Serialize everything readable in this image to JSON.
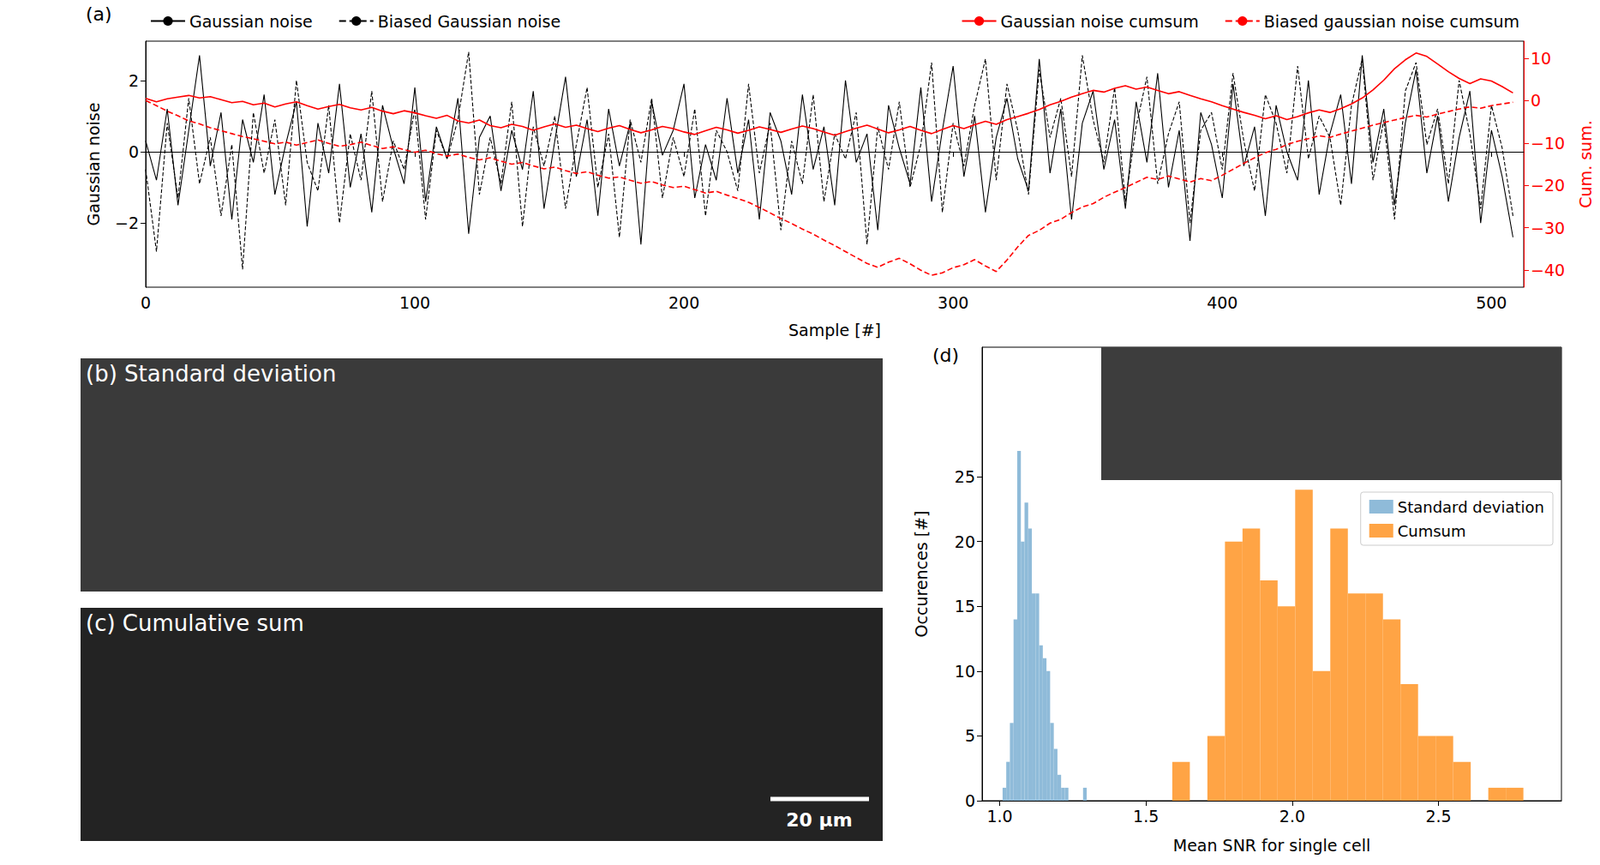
{
  "chart_data": [
    {
      "type": "line",
      "title": "(a)",
      "xlabel": "Sample [#]",
      "ylabel": "Gaussian noise",
      "y2label": "Cum. sum.",
      "xlim": [
        0,
        512
      ],
      "xticks": [
        0,
        100,
        200,
        300,
        400,
        500
      ],
      "ylim": [
        -3.8,
        3.1
      ],
      "yticks": [
        {
          "value": -2,
          "label": "−2"
        },
        0,
        2
      ],
      "y2lim": [
        -44,
        14
      ],
      "y2ticks": [
        {
          "value": -40,
          "label": "−40"
        },
        {
          "value": -30,
          "label": "−30"
        },
        {
          "value": -20,
          "label": "−20"
        },
        {
          "value": -10,
          "label": "−10"
        },
        0,
        10
      ],
      "legend": "top",
      "x": [
        0,
        4,
        8,
        12,
        16,
        20,
        24,
        28,
        32,
        36,
        40,
        44,
        48,
        52,
        56,
        60,
        64,
        68,
        72,
        76,
        80,
        84,
        88,
        92,
        96,
        100,
        104,
        108,
        112,
        116,
        120,
        124,
        128,
        132,
        136,
        140,
        144,
        148,
        152,
        156,
        160,
        164,
        168,
        172,
        176,
        180,
        184,
        188,
        192,
        196,
        200,
        204,
        208,
        212,
        216,
        220,
        224,
        228,
        232,
        236,
        240,
        244,
        248,
        252,
        256,
        260,
        264,
        268,
        272,
        276,
        280,
        284,
        288,
        292,
        296,
        300,
        304,
        308,
        312,
        316,
        320,
        324,
        328,
        332,
        336,
        340,
        344,
        348,
        352,
        356,
        360,
        364,
        368,
        372,
        376,
        380,
        384,
        388,
        392,
        396,
        400,
        404,
        408,
        412,
        416,
        420,
        424,
        428,
        432,
        436,
        440,
        444,
        448,
        452,
        456,
        460,
        464,
        468,
        472,
        476,
        480,
        484,
        488,
        492,
        496,
        500,
        504,
        508
      ],
      "series": [
        {
          "name": "Gaussian noise",
          "color": "#000000",
          "line_style": "solid",
          "values": [
            0.3,
            -0.8,
            1.2,
            -1.5,
            0.6,
            2.7,
            -0.4,
            1.1,
            -1.9,
            0.9,
            -0.3,
            1.6,
            -1.2,
            0.2,
            1.4,
            -2.1,
            0.8,
            -0.6,
            1.9,
            -1.0,
            0.5,
            -1.7,
            1.3,
            0.1,
            -0.9,
            1.8,
            -1.4,
            0.7,
            -0.2,
            1.5,
            -2.3,
            0.4,
            1.0,
            -1.1,
            0.6,
            -0.5,
            1.7,
            -1.6,
            0.3,
            2.1,
            -0.7,
            0.9,
            -1.8,
            1.2,
            -0.4,
            0.8,
            -2.6,
            1.4,
            -0.1,
            0.6,
            1.9,
            -1.3,
            0.2,
            -0.8,
            1.5,
            -0.6,
            0.9,
            -1.9,
            1.1,
            0.3,
            -1.2,
            1.6,
            -0.5,
            0.7,
            -1.5,
            2.0,
            -0.3,
            0.5,
            -2.2,
            1.3,
            0.1,
            -0.9,
            1.8,
            -1.4,
            0.6,
            2.4,
            -0.7,
            1.0,
            -1.7,
            0.4,
            1.5,
            -0.2,
            -1.1,
            2.6,
            -0.6,
            1.2,
            -1.9,
            0.8,
            1.7,
            -0.5,
            0.9,
            -1.6,
            1.4,
            -0.3,
            2.2,
            -1.0,
            0.6,
            -2.5,
            1.1,
            0.2,
            -1.3,
            1.9,
            -0.4,
            0.7,
            -1.8,
            1.3,
            0.0,
            -0.8,
            2.0,
            -1.2,
            0.5,
            1.6,
            -0.9,
            2.7,
            -0.3,
            1.2,
            -1.5,
            0.8,
            2.3,
            -0.6,
            1.0,
            -1.4,
            0.4,
            1.7,
            -2.0,
            0.6,
            -0.7,
            -2.4
          ]
        },
        {
          "name": "Biased Gaussian noise",
          "color": "#000000",
          "line_style": "dashed",
          "values": [
            -0.5,
            -2.8,
            0.8,
            -1.3,
            1.5,
            -0.9,
            0.4,
            -1.8,
            0.2,
            -3.3,
            1.1,
            -0.6,
            0.9,
            -1.5,
            2.0,
            -0.3,
            -1.1,
            1.3,
            -2.0,
            0.5,
            -0.8,
            1.7,
            -1.4,
            0.3,
            -0.5,
            1.2,
            -1.9,
            0.6,
            -0.2,
            0.9,
            2.8,
            -1.2,
            0.4,
            -0.9,
            1.4,
            -2.1,
            0.7,
            -0.4,
            1.0,
            -1.6,
            0.2,
            1.8,
            -1.0,
            0.5,
            -2.4,
            0.9,
            -0.3,
            1.5,
            -1.3,
            0.4,
            -0.7,
            1.2,
            -1.8,
            0.6,
            0.0,
            -1.1,
            1.9,
            -0.6,
            0.8,
            -2.2,
            0.3,
            -0.9,
            1.6,
            -1.4,
            0.5,
            -0.2,
            1.1,
            -2.6,
            0.7,
            -0.5,
            1.4,
            -1.0,
            0.2,
            2.5,
            -1.7,
            0.8,
            -0.4,
            1.3,
            2.6,
            -0.8,
            1.9,
            0.6,
            -1.2,
            2.3,
            0.4,
            1.5,
            -0.7,
            2.7,
            0.9,
            -0.3,
            1.8,
            -1.4,
            0.7,
            2.1,
            -0.9,
            0.5,
            1.4,
            -2.0,
            0.6,
            1.1,
            -0.5,
            2.2,
            0.3,
            -1.1,
            1.6,
            0.8,
            -0.6,
            2.4,
            -0.2,
            1.0,
            0.4,
            -1.5,
            1.3,
            2.6,
            -0.8,
            0.9,
            -1.9,
            1.7,
            2.5,
            0.2,
            1.2,
            -0.9,
            2.0,
            0.5,
            -1.6,
            1.3,
            0.1,
            -1.8
          ]
        },
        {
          "name": "Gaussian noise cumsum",
          "color": "#ff0000",
          "line_style": "solid",
          "axis": "y2",
          "values": [
            0.5,
            -0.3,
            0.4,
            0.8,
            1.2,
            0.6,
            0.9,
            0.2,
            -0.5,
            -0.2,
            -1.0,
            -0.6,
            -1.5,
            -0.8,
            -0.3,
            -1.2,
            -2.0,
            -1.4,
            -0.9,
            -1.7,
            -2.2,
            -1.6,
            -2.5,
            -3.1,
            -2.4,
            -2.9,
            -3.6,
            -4.2,
            -3.5,
            -4.8,
            -5.3,
            -4.6,
            -5.9,
            -6.4,
            -5.6,
            -6.1,
            -7.0,
            -6.2,
            -5.5,
            -6.3,
            -5.8,
            -6.6,
            -7.3,
            -6.5,
            -5.9,
            -6.8,
            -7.6,
            -6.9,
            -6.1,
            -6.6,
            -7.4,
            -8.0,
            -7.1,
            -6.3,
            -6.9,
            -7.7,
            -7.0,
            -6.2,
            -6.8,
            -7.5,
            -6.7,
            -6.0,
            -6.6,
            -7.4,
            -8.2,
            -7.3,
            -6.5,
            -5.8,
            -6.7,
            -7.6,
            -6.9,
            -6.1,
            -7.0,
            -7.8,
            -6.8,
            -5.9,
            -6.6,
            -5.7,
            -4.9,
            -5.6,
            -4.5,
            -3.8,
            -3.0,
            -2.1,
            -1.0,
            -0.2,
            0.8,
            1.6,
            2.4,
            2.0,
            2.9,
            3.5,
            2.7,
            3.2,
            2.4,
            1.6,
            2.1,
            1.2,
            0.4,
            -0.3,
            -1.2,
            -2.0,
            -2.8,
            -3.5,
            -4.3,
            -3.6,
            -4.5,
            -3.8,
            -2.9,
            -2.2,
            -2.8,
            -1.9,
            -0.8,
            0.6,
            2.5,
            4.8,
            7.5,
            9.6,
            11.2,
            10.4,
            8.6,
            6.8,
            5.2,
            4.0,
            5.1,
            4.6,
            3.3,
            1.8
          ]
        },
        {
          "name": "Biased gaussian noise cumsum",
          "color": "#ff0000",
          "line_style": "dashed",
          "axis": "y2",
          "values": [
            0.0,
            -1.2,
            -2.5,
            -3.6,
            -4.8,
            -5.5,
            -6.4,
            -7.1,
            -7.8,
            -8.5,
            -9.0,
            -9.6,
            -10.2,
            -9.8,
            -10.5,
            -9.9,
            -9.3,
            -10.1,
            -10.8,
            -10.4,
            -9.8,
            -10.6,
            -11.3,
            -10.9,
            -11.6,
            -12.2,
            -11.7,
            -12.5,
            -13.1,
            -12.6,
            -13.4,
            -14.0,
            -13.5,
            -14.3,
            -15.0,
            -14.6,
            -15.4,
            -16.1,
            -15.7,
            -16.5,
            -17.2,
            -16.8,
            -17.6,
            -18.3,
            -18.0,
            -18.8,
            -19.5,
            -19.1,
            -19.9,
            -20.5,
            -20.2,
            -21.0,
            -21.8,
            -21.4,
            -22.3,
            -23.1,
            -24.0,
            -25.2,
            -26.5,
            -27.8,
            -29.0,
            -30.3,
            -31.5,
            -32.9,
            -34.2,
            -35.6,
            -37.0,
            -38.4,
            -39.3,
            -38.1,
            -37.2,
            -38.5,
            -40.0,
            -41.2,
            -40.6,
            -39.4,
            -38.7,
            -37.5,
            -39.0,
            -40.3,
            -37.6,
            -34.5,
            -31.8,
            -30.6,
            -28.9,
            -28.0,
            -26.4,
            -25.1,
            -24.3,
            -22.8,
            -21.6,
            -20.5,
            -19.3,
            -18.1,
            -18.6,
            -17.8,
            -18.5,
            -19.2,
            -18.4,
            -18.9,
            -17.6,
            -16.2,
            -14.8,
            -13.5,
            -12.3,
            -11.5,
            -10.4,
            -9.6,
            -9.0,
            -8.3,
            -8.7,
            -7.9,
            -7.2,
            -6.5,
            -5.8,
            -5.2,
            -4.6,
            -4.0,
            -3.5,
            -3.9,
            -3.2,
            -2.6,
            -2.0,
            -1.5,
            -1.8,
            -1.2,
            -0.8,
            -0.4
          ]
        }
      ]
    },
    {
      "type": "histogram",
      "title": "(d)",
      "xlabel": "Mean SNR for single cell",
      "ylabel": "Occurences [#]",
      "xlim": [
        0.94,
        2.92
      ],
      "xticks": [
        {
          "value": 1,
          "label": "1.0"
        },
        1.5,
        {
          "value": 2,
          "label": "2.0"
        },
        2.5
      ],
      "ylim": [
        0,
        35
      ],
      "yticks": [
        0,
        5,
        10,
        15,
        20,
        25
      ],
      "legend": "upper right",
      "series": [
        {
          "name": "Standard deviation",
          "color": "#8fbbd9",
          "bins": [
            1.01,
            1.0225,
            1.035,
            1.0475,
            1.06,
            1.0725,
            1.085,
            1.0975,
            1.11,
            1.1225,
            1.135,
            1.1475,
            1.16,
            1.1725,
            1.185,
            1.1975,
            1.21,
            1.2225,
            1.235,
            1.2475,
            1.26,
            1.2725,
            1.285,
            1.2975
          ],
          "values": [
            1,
            3,
            6,
            14,
            27,
            20,
            23,
            21,
            16,
            16,
            12,
            11,
            10,
            6,
            4,
            2,
            1,
            1,
            0,
            0,
            0,
            0,
            1
          ]
        },
        {
          "name": "Cumsum",
          "color": "#ffa445",
          "bins": [
            1.59,
            1.65,
            1.71,
            1.77,
            1.83,
            1.89,
            1.95,
            2.01,
            2.07,
            2.13,
            2.19,
            2.25,
            2.31,
            2.37,
            2.43,
            2.49,
            2.55,
            2.61,
            2.67,
            2.73,
            2.79
          ],
          "values": [
            3,
            0,
            5,
            20,
            21,
            17,
            15,
            24,
            10,
            21,
            16,
            16,
            14,
            9,
            5,
            5,
            3,
            0,
            1,
            1
          ]
        }
      ]
    }
  ],
  "images": [
    {
      "title": "(b) Standard deviation"
    },
    {
      "title": "(c) Cumulative sum",
      "scale_bar": "20 µm"
    }
  ]
}
